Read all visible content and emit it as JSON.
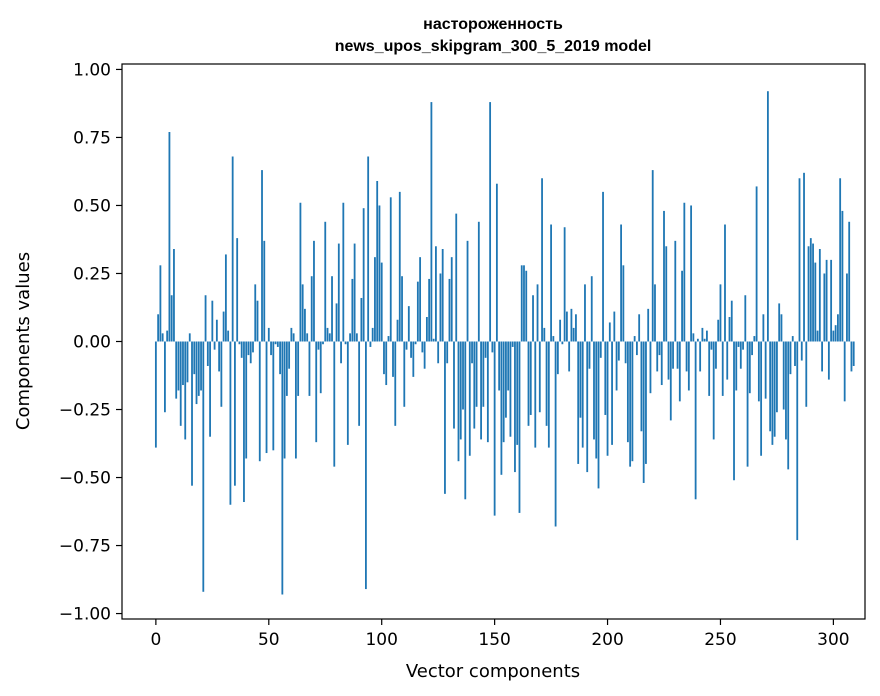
{
  "chart_data": {
    "type": "bar",
    "title": "настороженность",
    "subtitle": "news_upos_skipgram_300_5_2019 model",
    "xlabel": "Vector components",
    "ylabel": "Components values",
    "xlim": [
      -15,
      314
    ],
    "ylim": [
      -1.02,
      1.02
    ],
    "xticks": [
      0,
      50,
      100,
      150,
      200,
      250,
      300
    ],
    "yticks": [
      1.0,
      0.75,
      0.5,
      0.25,
      0.0,
      -0.25,
      -0.5,
      -0.75,
      -1.0
    ],
    "xtick_labels": [
      "0",
      "50",
      "100",
      "150",
      "200",
      "250",
      "300"
    ],
    "ytick_labels": [
      "1.00",
      "0.75",
      "0.50",
      "0.25",
      "0.00",
      "−0.25",
      "−0.50",
      "−0.75",
      "−1.00"
    ],
    "grid": false,
    "legend": "none",
    "bar_color": "#1f77b4",
    "values": [
      -0.39,
      0.1,
      0.28,
      0.03,
      -0.26,
      0.04,
      0.77,
      0.17,
      0.34,
      -0.21,
      -0.18,
      -0.31,
      -0.16,
      -0.36,
      -0.15,
      0.03,
      -0.53,
      -0.12,
      -0.23,
      -0.2,
      -0.18,
      -0.92,
      0.17,
      -0.09,
      -0.35,
      0.15,
      -0.03,
      0.08,
      -0.11,
      -0.24,
      0.11,
      0.32,
      0.04,
      -0.6,
      0.68,
      -0.53,
      0.38,
      -0.01,
      -0.06,
      -0.59,
      -0.43,
      -0.05,
      -0.08,
      -0.04,
      0.21,
      0.15,
      -0.44,
      0.63,
      0.37,
      -0.41,
      0.05,
      -0.05,
      -0.4,
      -0.01,
      -0.02,
      -0.12,
      -0.93,
      -0.43,
      -0.2,
      -0.1,
      0.05,
      0.03,
      -0.43,
      -0.2,
      0.51,
      0.21,
      0.12,
      0.03,
      -0.2,
      0.24,
      0.37,
      -0.37,
      -0.03,
      -0.19,
      -0.01,
      0.44,
      0.05,
      0.03,
      0.24,
      -0.46,
      0.14,
      0.36,
      -0.08,
      0.51,
      -0.01,
      -0.38,
      0.03,
      0.23,
      0.36,
      0.03,
      -0.31,
      0.16,
      0.49,
      -0.91,
      0.68,
      -0.02,
      0.05,
      0.31,
      0.59,
      0.5,
      0.29,
      -0.12,
      -0.16,
      0.02,
      0.53,
      -0.13,
      -0.31,
      0.08,
      0.55,
      0.24,
      -0.24,
      -0.03,
      0.13,
      -0.06,
      -0.13,
      -0.01,
      0.22,
      0.31,
      -0.04,
      -0.1,
      0.09,
      0.23,
      0.88,
      0.01,
      0.35,
      -0.08,
      0.25,
      0.34,
      -0.56,
      -0.08,
      0.23,
      0.31,
      -0.32,
      0.47,
      -0.44,
      -0.36,
      -0.25,
      -0.58,
      0.37,
      -0.42,
      -0.08,
      -0.32,
      -0.24,
      0.44,
      -0.36,
      -0.24,
      -0.06,
      -0.37,
      0.88,
      -0.04,
      -0.64,
      0.58,
      -0.18,
      -0.49,
      -0.37,
      -0.28,
      -0.18,
      -0.35,
      -0.02,
      -0.48,
      -0.38,
      -0.63,
      0.28,
      0.28,
      0.26,
      -0.31,
      -0.27,
      0.17,
      -0.39,
      0.21,
      -0.26,
      0.6,
      0.05,
      -0.31,
      -0.39,
      0.43,
      0.02,
      -0.68,
      -0.12,
      0.08,
      -0.01,
      0.42,
      0.11,
      -0.11,
      0.12,
      0.05,
      0.1,
      -0.45,
      -0.28,
      -0.39,
      0.21,
      -0.48,
      -0.1,
      0.24,
      -0.36,
      -0.43,
      -0.54,
      -0.06,
      0.55,
      -0.27,
      -0.42,
      0.07,
      -0.38,
      0.11,
      -0.18,
      -0.07,
      0.43,
      0.28,
      -0.08,
      -0.37,
      -0.46,
      -0.44,
      0.02,
      -0.05,
      0.1,
      -0.33,
      -0.52,
      -0.45,
      0.12,
      -0.19,
      0.63,
      0.21,
      -0.11,
      -0.05,
      -0.16,
      0.48,
      0.35,
      -0.14,
      -0.29,
      -0.1,
      0.37,
      -0.1,
      -0.22,
      0.26,
      0.51,
      -0.11,
      -0.18,
      0.5,
      0.03,
      -0.58,
      0.01,
      -0.11,
      0.05,
      0.01,
      0.04,
      -0.2,
      -0.03,
      -0.36,
      -0.1,
      0.08,
      0.21,
      -0.2,
      0.43,
      -0.14,
      0.09,
      0.15,
      -0.51,
      -0.18,
      -0.02,
      -0.1,
      -0.03,
      0.17,
      -0.46,
      -0.19,
      -0.05,
      0.02,
      0.57,
      -0.22,
      -0.42,
      0.1,
      -0.21,
      0.92,
      -0.33,
      -0.38,
      -0.35,
      -0.26,
      0.14,
      0.1,
      -0.25,
      -0.36,
      -0.47,
      -0.12,
      0.02,
      -0.09,
      -0.73,
      0.6,
      -0.07,
      0.62,
      -0.24,
      0.35,
      0.38,
      0.36,
      0.29,
      0.04,
      0.34,
      -0.11,
      0.25,
      0.3,
      -0.14,
      0.3,
      0.04,
      0.06,
      0.1,
      0.6,
      0.48,
      -0.22,
      0.25,
      0.44,
      -0.11,
      -0.09
    ]
  }
}
